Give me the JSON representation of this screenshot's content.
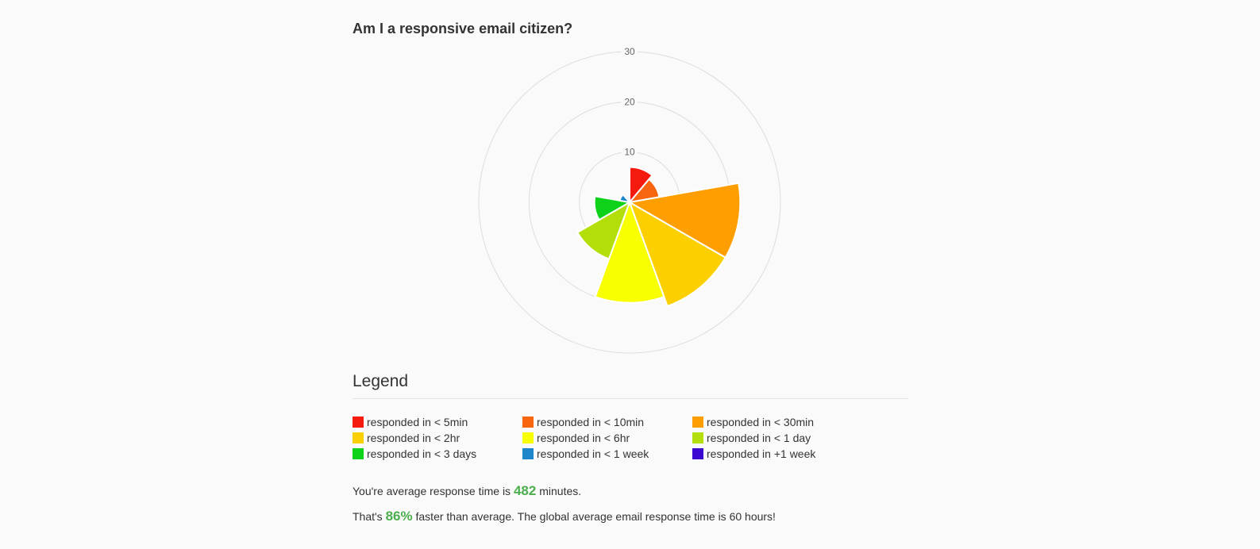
{
  "title": "Am I a responsive email citizen?",
  "chart_data": {
    "type": "polar-area",
    "categories": [
      "responded in < 5min",
      "responded in < 10min",
      "responded in < 30min",
      "responded in < 2hr",
      "responded in < 6hr",
      "responded in < 1 day",
      "responded in < 3 days",
      "responded in < 1 week",
      "responded in +1 week"
    ],
    "values": [
      7,
      6,
      22,
      22,
      20,
      12,
      7,
      2,
      0
    ],
    "colors": [
      "#f41a0d",
      "#f7650f",
      "#ff9e00",
      "#fcd000",
      "#f8ff00",
      "#b4de0a",
      "#0ed21a",
      "#1d85c9",
      "#3a08d1"
    ],
    "radial_ticks": [
      10,
      20,
      30
    ],
    "rlim": [
      0,
      30
    ],
    "grid": true
  },
  "legend": {
    "title": "Legend",
    "items": [
      {
        "label": "responded in < 5min",
        "color": "#f41a0d"
      },
      {
        "label": "responded in < 10min",
        "color": "#f7650f"
      },
      {
        "label": "responded in < 30min",
        "color": "#ff9e00"
      },
      {
        "label": "responded in < 2hr",
        "color": "#fcd000"
      },
      {
        "label": "responded in < 6hr",
        "color": "#f8ff00"
      },
      {
        "label": "responded in < 1 day",
        "color": "#b4de0a"
      },
      {
        "label": "responded in < 3 days",
        "color": "#0ed21a"
      },
      {
        "label": "responded in < 1 week",
        "color": "#1d85c9"
      },
      {
        "label": "responded in +1 week",
        "color": "#3a08d1"
      }
    ]
  },
  "summary": {
    "line1_prefix": "You're average response time is ",
    "avg_minutes": "482",
    "line1_suffix": " minutes.",
    "line2_prefix": "That's ",
    "faster_pct": "86%",
    "line2_suffix": " faster than average. The global average email response time is 60 hours!"
  },
  "colors": {
    "highlight": "#4cae4c",
    "grid": "#dddddd",
    "text": "#333333"
  }
}
